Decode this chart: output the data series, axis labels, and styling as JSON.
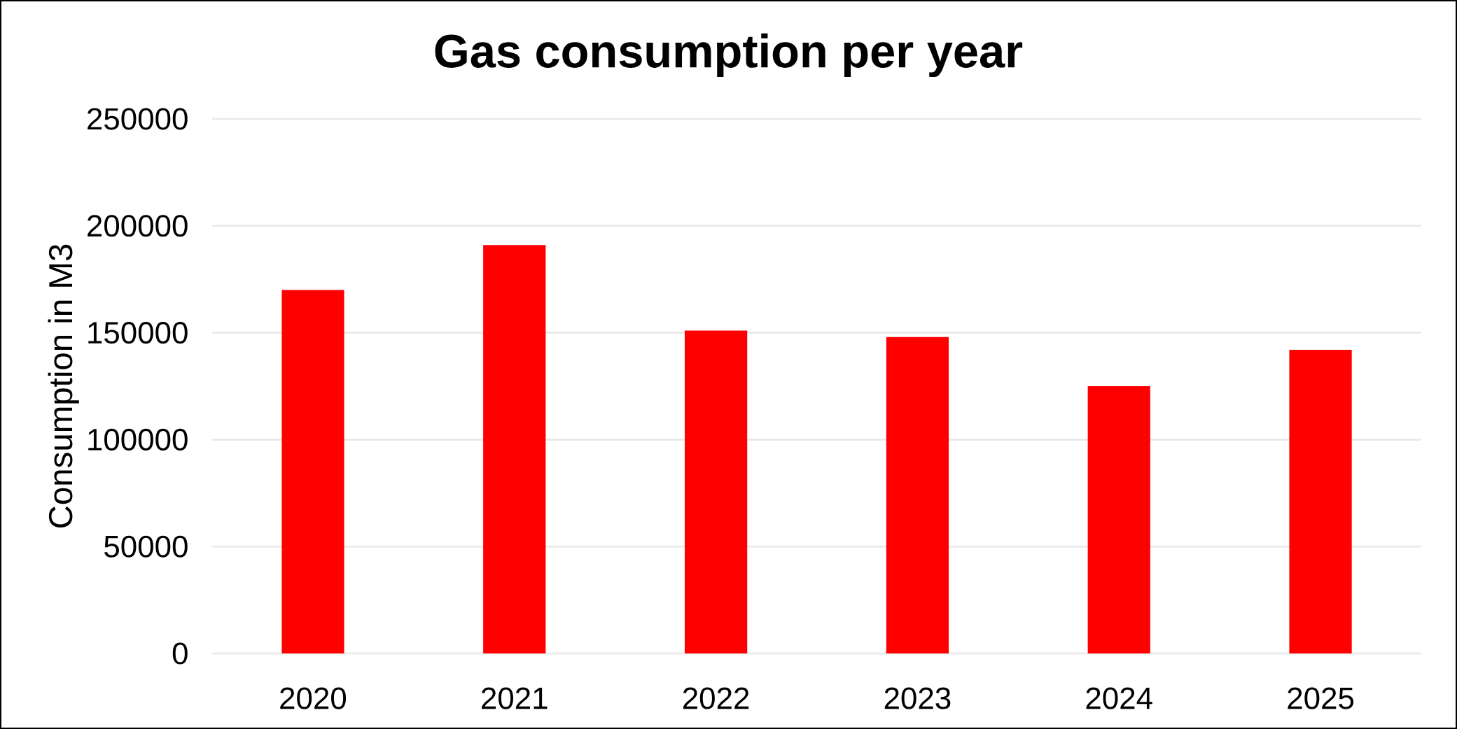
{
  "chart_data": {
    "type": "bar",
    "title": "Gas consumption per year",
    "ylabel": "Consumption in M3",
    "categories": [
      "2020",
      "2021",
      "2022",
      "2023",
      "2024",
      "2025"
    ],
    "values": [
      170000,
      191000,
      151000,
      148000,
      125000,
      142000
    ],
    "color": "#ff0000",
    "ylim": [
      0,
      250000
    ],
    "yticks": [
      0,
      50000,
      100000,
      150000,
      200000,
      250000
    ],
    "grid": "y"
  }
}
